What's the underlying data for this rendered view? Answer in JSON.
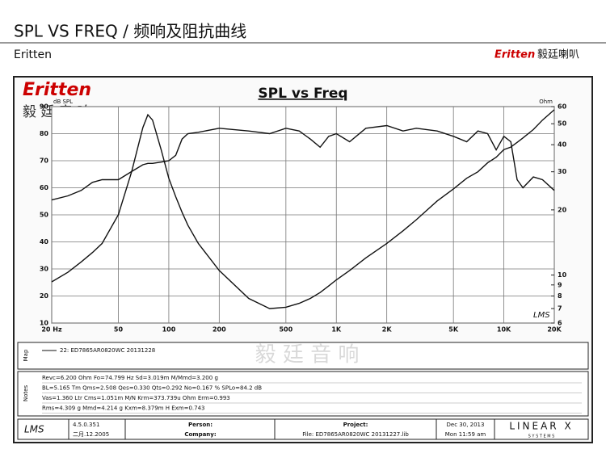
{
  "header": {
    "title": "SPL VS FREQ  /  频响及阻抗曲线",
    "brand": "Eritten",
    "logo_text": "Eritten",
    "logo_cn": "毅廷喇叭"
  },
  "chart_data": {
    "type": "line",
    "title": "SPL vs Freq",
    "logo": "Eritten",
    "logo_cn": "毅 廷 音 响",
    "y_label": "dB SPL",
    "y2_label": "Ohm",
    "xscale": "log",
    "y2scale": "log",
    "grid": true,
    "x": [
      20,
      25,
      30,
      35,
      40,
      50,
      60,
      70,
      75,
      80,
      90,
      100,
      110,
      120,
      130,
      150,
      200,
      300,
      400,
      500,
      600,
      700,
      800,
      900,
      1000,
      1200,
      1500,
      2000,
      2500,
      3000,
      4000,
      5000,
      6000,
      7000,
      8000,
      9000,
      10000,
      11000,
      12000,
      13000,
      15000,
      17000,
      20000
    ],
    "xlim": [
      20,
      20000
    ],
    "xticks": [
      {
        "value": 20,
        "label": "20 Hz"
      },
      50,
      100,
      200,
      500,
      {
        "value": 1000,
        "label": "1K"
      },
      {
        "value": 2000,
        "label": "2K"
      },
      {
        "value": 5000,
        "label": "5K"
      },
      {
        "value": 10000,
        "label": "10K"
      },
      {
        "value": 20000,
        "label": "20K"
      }
    ],
    "ylim": [
      10,
      90
    ],
    "yticks": [
      10,
      20,
      30,
      40,
      50,
      60,
      70,
      80,
      90
    ],
    "y2lim": [
      6,
      60
    ],
    "y2ticks": [
      6,
      7,
      8,
      9,
      10,
      20,
      30,
      40,
      50,
      60
    ],
    "series": [
      {
        "name": "22: ED7865AR0820WC  20131228",
        "color": "#111111",
        "values": [
          55.5,
          57,
          59,
          62,
          63,
          63,
          66,
          68.5,
          69,
          69,
          69.5,
          70,
          72,
          78,
          80,
          80.5,
          82,
          81,
          80,
          82,
          81,
          78,
          75,
          79,
          80,
          77,
          82,
          83,
          81,
          82,
          81,
          79,
          77,
          81,
          80,
          74,
          79,
          77,
          63,
          60,
          64,
          63,
          59
        ]
      },
      {
        "axis": "y2",
        "color": "#111111",
        "values": [
          9.3,
          10.3,
          11.5,
          12.7,
          14,
          19,
          30,
          48,
          55,
          52,
          38,
          28,
          23,
          19.5,
          17,
          14,
          10.5,
          7.8,
          7.0,
          7.1,
          7.4,
          7.8,
          8.3,
          8.9,
          9.5,
          10.5,
          12,
          14,
          16,
          18,
          22,
          25,
          28,
          30,
          33,
          35,
          38,
          39,
          41,
          43,
          47,
          52,
          58
        ]
      }
    ]
  },
  "panels": {
    "map_label": "Map",
    "watermark": "毅 廷 音 响",
    "notes_label": "Notes",
    "notes": [
      "Revc=6.200 Ohm  Fo=74.799 Hz  Sd=3.019m M/Mmd=3.200 g",
      "BL=5.165 Tm  Qms=2.508  Qes=0.330  Qts=0.292  No=0.167 %  SPLo=84.2 dB",
      "Vas=1.360 Ltr  Cms=1.051m M/N  Krm=373.739u Ohm  Erm=0.993",
      "Rms=4.309 g  Mmd=4.214 g  Kxm=8.379m H  Exm=0.743"
    ],
    "footer": {
      "software": "LMS",
      "version": "4.5.0.351",
      "date": "二月.12.2005",
      "person": "Person:",
      "company": "Company:",
      "project": "Project:",
      "file": "File: ED7865AR0820WC  20131227.lib",
      "date2": "Dec 30, 2013",
      "time": "Mon 11:59 am",
      "vendor": "LINEAR X",
      "vendor_sub": "S Y S T E M S"
    }
  }
}
